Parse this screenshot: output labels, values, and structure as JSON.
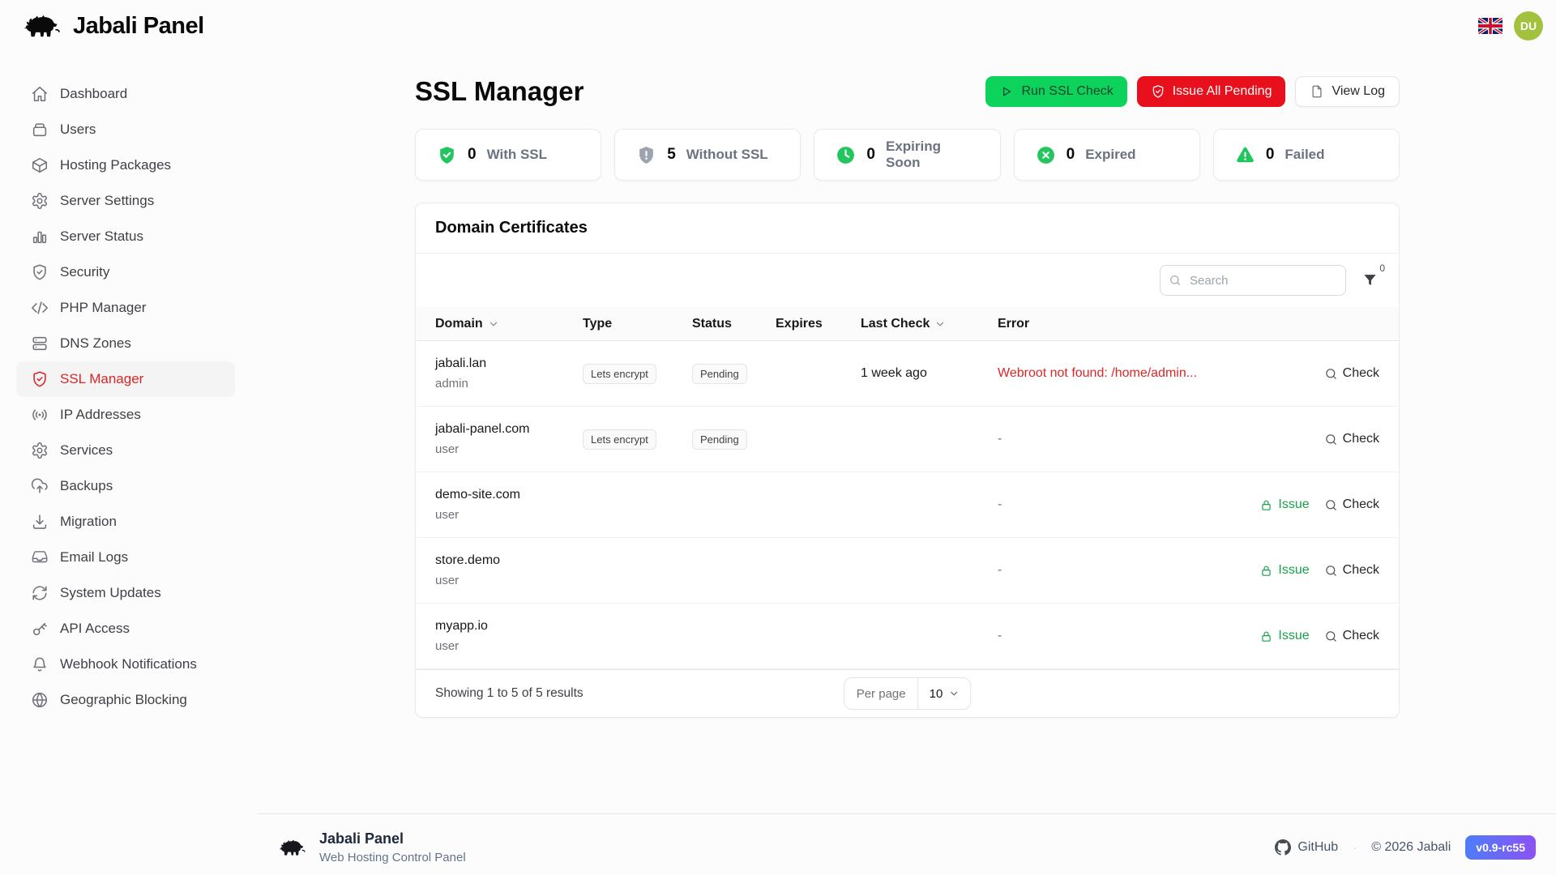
{
  "header": {
    "brand": "Jabali Panel",
    "language_icon": "uk-flag",
    "user_initials": "DU",
    "avatar_color": "#a2c13d"
  },
  "sidebar": {
    "items": [
      {
        "label": "Dashboard",
        "icon": "home"
      },
      {
        "label": "Users",
        "icon": "users"
      },
      {
        "label": "Hosting Packages",
        "icon": "package"
      },
      {
        "label": "Server Settings",
        "icon": "gear"
      },
      {
        "label": "Server Status",
        "icon": "bar-chart"
      },
      {
        "label": "Security",
        "icon": "shield-check"
      },
      {
        "label": "PHP Manager",
        "icon": "code"
      },
      {
        "label": "DNS Zones",
        "icon": "server"
      },
      {
        "label": "SSL Manager",
        "icon": "shield-check",
        "active": true,
        "active_color": "#dc2626"
      },
      {
        "label": "IP Addresses",
        "icon": "broadcast"
      },
      {
        "label": "Services",
        "icon": "gear"
      },
      {
        "label": "Backups",
        "icon": "cloud-upload"
      },
      {
        "label": "Migration",
        "icon": "download"
      },
      {
        "label": "Email Logs",
        "icon": "inbox"
      },
      {
        "label": "System Updates",
        "icon": "refresh"
      },
      {
        "label": "API Access",
        "icon": "key"
      },
      {
        "label": "Webhook Notifications",
        "icon": "bell"
      },
      {
        "label": "Geographic Blocking",
        "icon": "globe"
      }
    ]
  },
  "page": {
    "title": "SSL Manager",
    "actions": {
      "run_check": {
        "label": "Run SSL Check",
        "icon": "play",
        "color": "#0dd25c"
      },
      "issue_all": {
        "label": "Issue All Pending",
        "icon": "shield-check",
        "color": "#e8101c"
      },
      "view_log": {
        "label": "View Log",
        "icon": "file"
      }
    }
  },
  "stats": [
    {
      "value": "0",
      "label": "With SSL",
      "icon": "shield-check-filled",
      "color": "#22c55e"
    },
    {
      "value": "5",
      "label": "Without SSL",
      "icon": "shield-alert-filled",
      "color": "#9ca3af"
    },
    {
      "value": "0",
      "label": "Expiring Soon",
      "icon": "clock-filled",
      "color": "#22c55e"
    },
    {
      "value": "0",
      "label": "Expired",
      "icon": "x-circle-filled",
      "color": "#22c55e"
    },
    {
      "value": "0",
      "label": "Failed",
      "icon": "triangle-alert-filled",
      "color": "#22c55e"
    }
  ],
  "certificates": {
    "title": "Domain Certificates",
    "search_placeholder": "Search",
    "filter_count": "0",
    "columns": [
      {
        "label": "Domain",
        "sortable": true
      },
      {
        "label": "Type",
        "sortable": false
      },
      {
        "label": "Status",
        "sortable": false
      },
      {
        "label": "Expires",
        "sortable": false
      },
      {
        "label": "Last Check",
        "sortable": true
      },
      {
        "label": "Error",
        "sortable": false
      }
    ],
    "rows": [
      {
        "domain": "jabali.lan",
        "owner": "admin",
        "type": "Lets encrypt",
        "status": "Pending",
        "expires": "",
        "last_check": "1 week ago",
        "error": "Webroot not found: /home/admin...",
        "error_color": "#dc2626",
        "check_label": "Check"
      },
      {
        "domain": "jabali-panel.com",
        "owner": "user",
        "type": "Lets encrypt",
        "status": "Pending",
        "expires": "",
        "last_check": "",
        "error": "-",
        "check_label": "Check"
      },
      {
        "domain": "demo-site.com",
        "owner": "user",
        "type": "",
        "status": "",
        "expires": "",
        "last_check": "",
        "error": "-",
        "issue_label": "Issue",
        "check_label": "Check"
      },
      {
        "domain": "store.demo",
        "owner": "user",
        "type": "",
        "status": "",
        "expires": "",
        "last_check": "",
        "error": "-",
        "issue_label": "Issue",
        "check_label": "Check"
      },
      {
        "domain": "myapp.io",
        "owner": "user",
        "type": "",
        "status": "",
        "expires": "",
        "last_check": "",
        "error": "-",
        "issue_label": "Issue",
        "check_label": "Check"
      }
    ],
    "pagination": {
      "showing": "Showing 1 to 5 of 5 results",
      "per_page_label": "Per page",
      "per_page_value": "10"
    }
  },
  "footer": {
    "brand": "Jabali Panel",
    "tagline": "Web Hosting Control Panel",
    "github_label": "GitHub",
    "separator": "·",
    "copyright": "© 2026 Jabali",
    "version": "v0.9-rc55"
  }
}
